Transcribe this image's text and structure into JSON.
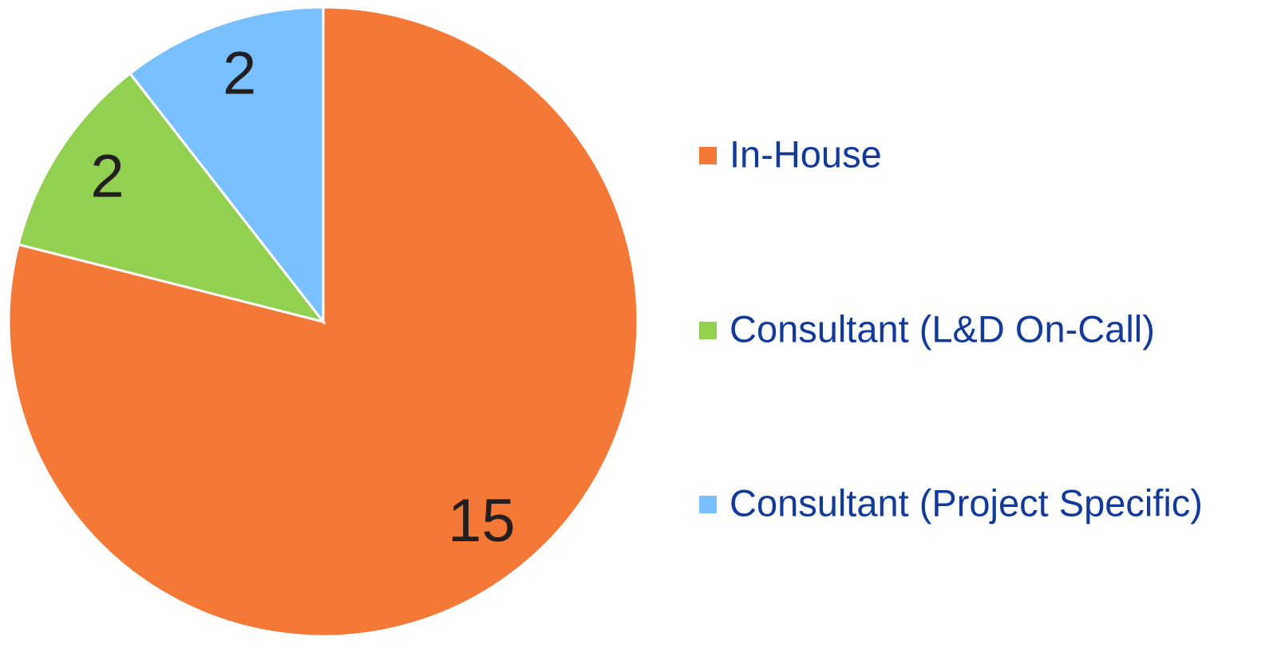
{
  "chart_data": {
    "type": "pie",
    "categories": [
      "In-House",
      "Consultant (L&D On-Call)",
      "Consultant (Project Specific)"
    ],
    "values": [
      15,
      2,
      2
    ],
    "colors": [
      "#f47937",
      "#92d050",
      "#78c1fe"
    ],
    "legend": "right"
  }
}
